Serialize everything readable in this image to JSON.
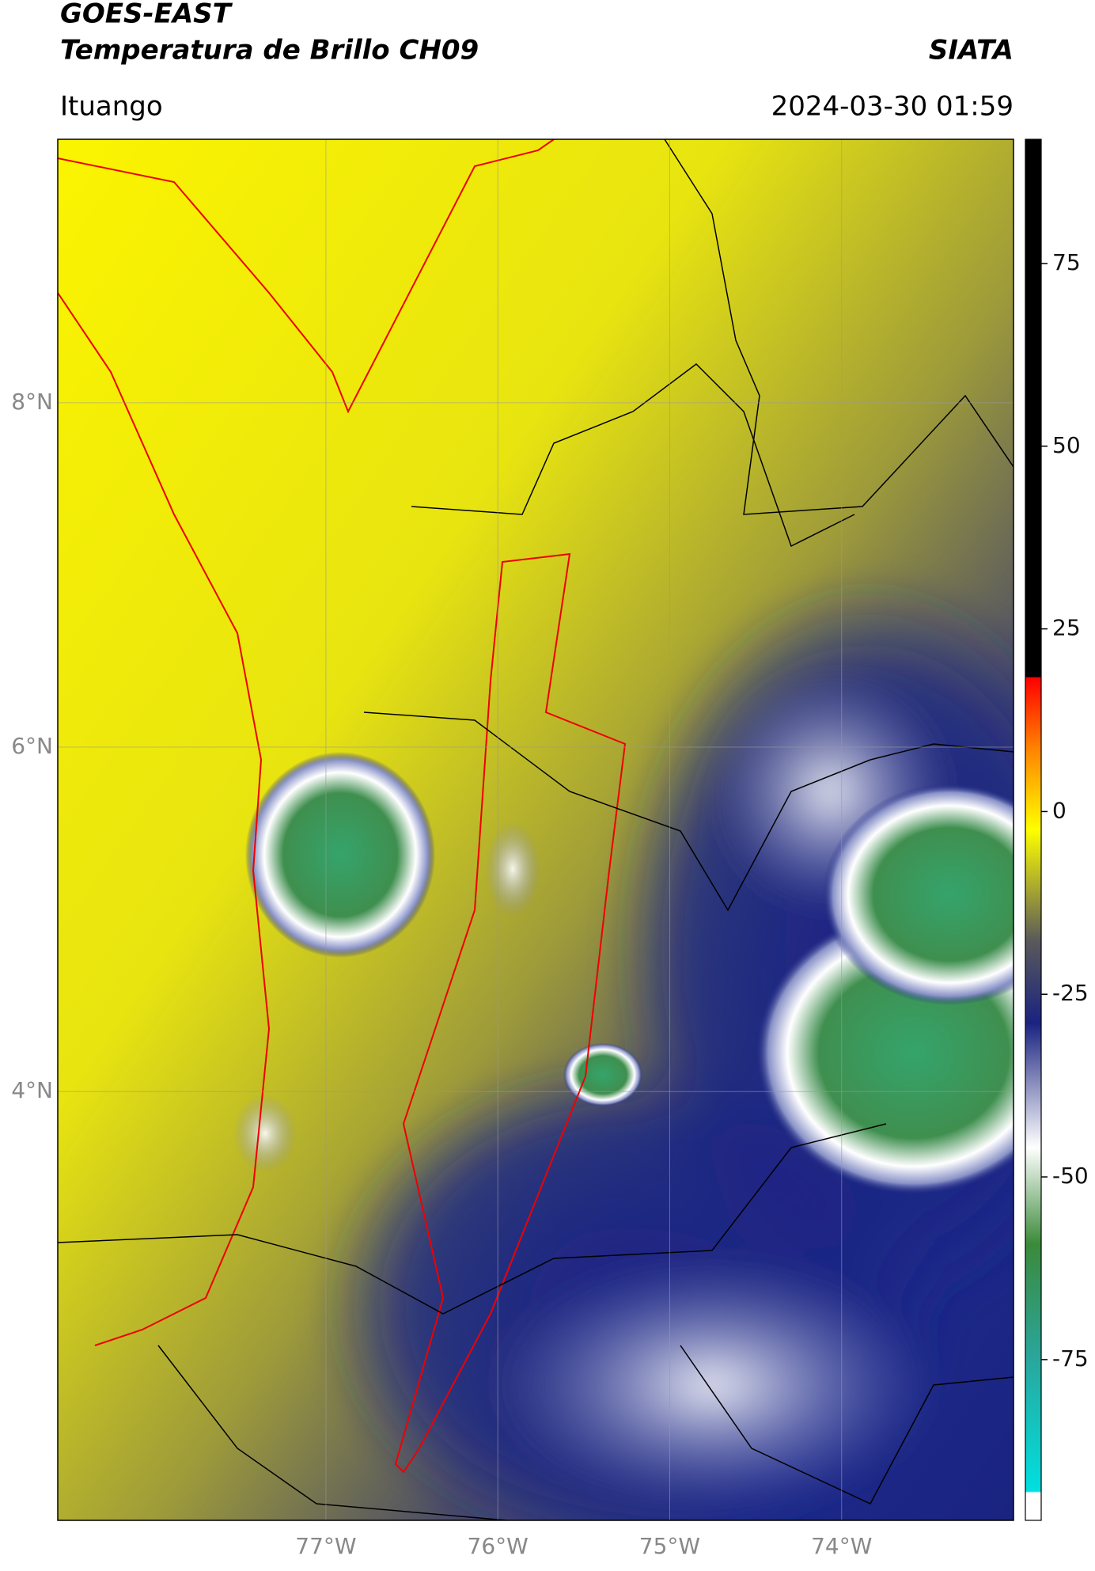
{
  "header": {
    "source": "GOES-EAST",
    "product": "Temperatura de Brillo CH09",
    "brand": "SIATA",
    "region": "Ituango",
    "timestamp": "2024-03-30 01:59"
  },
  "map": {
    "xlim": [
      -78.56,
      -73.0
    ],
    "ylim": [
      1.51,
      9.53
    ],
    "xticks": [
      {
        "value": -77,
        "label": "77°W"
      },
      {
        "value": -76,
        "label": "76°W"
      },
      {
        "value": -75,
        "label": "75°W"
      },
      {
        "value": -74,
        "label": "74°W"
      }
    ],
    "yticks": [
      {
        "value": 8,
        "label": "8°N"
      },
      {
        "value": 6,
        "label": "6°N"
      },
      {
        "value": 4,
        "label": "4°N"
      }
    ],
    "grid": true
  },
  "colorbar": {
    "lim": [
      -97,
      92
    ],
    "ticks": [
      75,
      50,
      25,
      0,
      -25,
      -50,
      -75
    ]
  }
}
